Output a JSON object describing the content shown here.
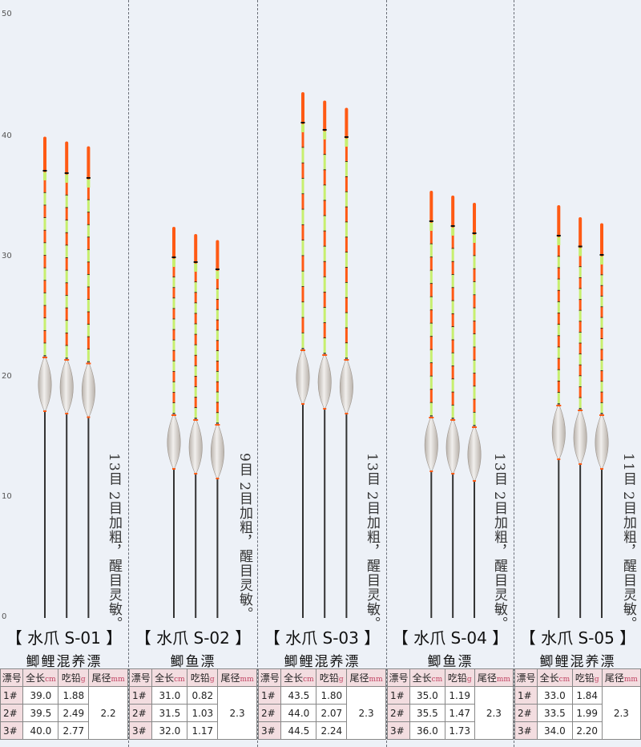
{
  "scale": {
    "ticks": [
      "50",
      "40",
      "30",
      "20",
      "10",
      "0"
    ]
  },
  "colors": {
    "tip": "#ff5a14",
    "green": "#c7ef6e",
    "black": "#111111",
    "stem": "#333333",
    "bodyLight": "#f1efed",
    "bodyShade": "#b8b1aa"
  },
  "table_headers": {
    "no": "漂号",
    "len": "全长",
    "len_unit": "cm",
    "lead": "吃铅",
    "lead_unit": "g",
    "tail": "尾径",
    "tail_unit": "mm"
  },
  "panels": [
    {
      "id": "s01",
      "title": "【 水爪 S-01 】",
      "subtitle": "鲫鲤混养漂",
      "note": "13目 2目加粗，醒目灵敏。",
      "floats": [
        {
          "top": 39.9,
          "mark": 37.2,
          "belly": 18.8,
          "bottom": 0
        },
        {
          "top": 39.5,
          "mark": 37.0,
          "belly": 18.6,
          "bottom": 0
        },
        {
          "top": 39.1,
          "mark": 36.6,
          "belly": 18.3,
          "bottom": 0
        }
      ],
      "rows": [
        {
          "no": "1#",
          "len": "39.0",
          "lead": "1.88"
        },
        {
          "no": "2#",
          "len": "39.5",
          "lead": "2.49"
        },
        {
          "no": "3#",
          "len": "40.0",
          "lead": "2.77"
        }
      ],
      "tail": "2.2"
    },
    {
      "id": "s02",
      "title": "【 水爪 S-02 】",
      "subtitle": "鲫鱼漂",
      "note": "9目 2目加粗，醒目灵敏。",
      "floats": [
        {
          "top": 32.4,
          "mark": 30.0,
          "belly": 14.0,
          "bottom": 0
        },
        {
          "top": 31.8,
          "mark": 29.6,
          "belly": 13.6,
          "bottom": 0
        },
        {
          "top": 31.3,
          "mark": 29.0,
          "belly": 13.2,
          "bottom": 0
        }
      ],
      "rows": [
        {
          "no": "1#",
          "len": "31.0",
          "lead": "0.82"
        },
        {
          "no": "2#",
          "len": "31.5",
          "lead": "1.03"
        },
        {
          "no": "3#",
          "len": "32.0",
          "lead": "1.17"
        }
      ],
      "tail": "2.3"
    },
    {
      "id": "s03",
      "title": "【 水爪 S-03 】",
      "subtitle": "鲫鲤混养漂",
      "note": "13目 2目加粗，醒目灵敏。",
      "floats": [
        {
          "top": 43.6,
          "mark": 41.2,
          "belly": 19.4,
          "bottom": 0
        },
        {
          "top": 42.9,
          "mark": 40.6,
          "belly": 19.0,
          "bottom": 0
        },
        {
          "top": 42.3,
          "mark": 40.0,
          "belly": 18.6,
          "bottom": 0
        }
      ],
      "rows": [
        {
          "no": "1#",
          "len": "43.5",
          "lead": "1.80"
        },
        {
          "no": "2#",
          "len": "44.0",
          "lead": "2.07"
        },
        {
          "no": "3#",
          "len": "44.5",
          "lead": "2.24"
        }
      ],
      "tail": "2.3"
    },
    {
      "id": "s04",
      "title": "【 水爪 S-04 】",
      "subtitle": "鲫鱼漂",
      "note": "13目 2目加粗，醒目灵敏。",
      "floats": [
        {
          "top": 35.4,
          "mark": 33.0,
          "belly": 13.8,
          "bottom": 0
        },
        {
          "top": 35.0,
          "mark": 32.6,
          "belly": 13.6,
          "bottom": 0
        },
        {
          "top": 34.4,
          "mark": 32.0,
          "belly": 13.0,
          "bottom": 0
        }
      ],
      "rows": [
        {
          "no": "1#",
          "len": "35.0",
          "lead": "1.19"
        },
        {
          "no": "2#",
          "len": "35.5",
          "lead": "1.47"
        },
        {
          "no": "3#",
          "len": "36.0",
          "lead": "1.73"
        }
      ],
      "tail": "2.3"
    },
    {
      "id": "s05",
      "title": "【 水爪 S-05 】",
      "subtitle": "鲫鲤混养漂",
      "note": "11目 2目加粗，醒目灵敏。",
      "floats": [
        {
          "top": 34.2,
          "mark": 31.8,
          "belly": 14.8,
          "bottom": 0
        },
        {
          "top": 33.2,
          "mark": 30.9,
          "belly": 14.4,
          "bottom": 0
        },
        {
          "top": 32.7,
          "mark": 30.2,
          "belly": 14.0,
          "bottom": 0
        }
      ],
      "rows": [
        {
          "no": "1#",
          "len": "33.0",
          "lead": "1.84"
        },
        {
          "no": "2#",
          "len": "33.5",
          "lead": "1.99"
        },
        {
          "no": "3#",
          "len": "34.0",
          "lead": "2.20"
        }
      ],
      "tail": "2.3"
    }
  ]
}
